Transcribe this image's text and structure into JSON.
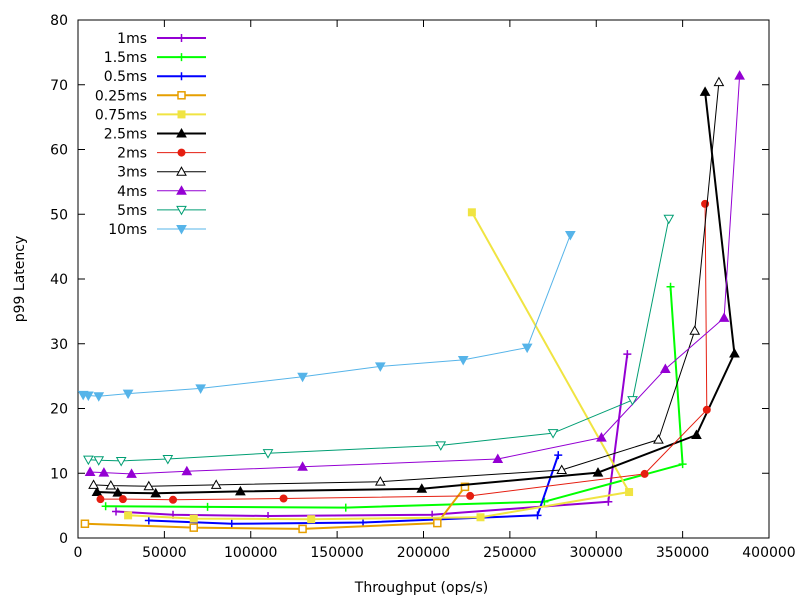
{
  "chart_data": {
    "type": "line",
    "title": "",
    "xlabel": "Throughput (ops/s)",
    "ylabel": "p99 Latency",
    "xlim": [
      0,
      400000
    ],
    "ylim": [
      0,
      80
    ],
    "x_ticks": [
      0,
      50000,
      100000,
      150000,
      200000,
      250000,
      300000,
      350000,
      400000
    ],
    "y_ticks": [
      0,
      10,
      20,
      30,
      40,
      50,
      60,
      70,
      80
    ],
    "grid": false,
    "legend_position": "top-left",
    "series": [
      {
        "name": "1ms",
        "color": "#9400d3",
        "marker": "plus",
        "width": 2,
        "points": [
          [
            22000,
            4.1
          ],
          [
            55000,
            3.6
          ],
          [
            110000,
            3.4
          ],
          [
            205000,
            3.6
          ],
          [
            307000,
            5.6
          ],
          [
            318000,
            28.4
          ]
        ]
      },
      {
        "name": "1.5ms",
        "color": "#00ff00",
        "marker": "plus",
        "width": 2,
        "points": [
          [
            16000,
            4.9
          ],
          [
            75000,
            4.8
          ],
          [
            155000,
            4.7
          ],
          [
            270000,
            5.6
          ],
          [
            350000,
            11.4
          ],
          [
            343000,
            38.8
          ]
        ]
      },
      {
        "name": "0.5ms",
        "color": "#0000ff",
        "marker": "plus",
        "width": 2,
        "points": [
          [
            41000,
            2.7
          ],
          [
            89000,
            2.2
          ],
          [
            165000,
            2.4
          ],
          [
            266000,
            3.5
          ],
          [
            278000,
            12.8
          ]
        ]
      },
      {
        "name": "0.25ms",
        "color": "#e69f00",
        "marker": "square-open",
        "width": 2,
        "points": [
          [
            4000,
            2.2
          ],
          [
            67000,
            1.6
          ],
          [
            130000,
            1.4
          ],
          [
            208000,
            2.3
          ],
          [
            224000,
            7.9
          ]
        ]
      },
      {
        "name": "0.75ms",
        "color": "#f0e442",
        "marker": "square-filled",
        "width": 2,
        "points": [
          [
            29000,
            3.5
          ],
          [
            67000,
            3.0
          ],
          [
            135000,
            2.9
          ],
          [
            233000,
            3.2
          ],
          [
            319000,
            7.1
          ],
          [
            228000,
            50.3
          ]
        ]
      },
      {
        "name": "2.5ms",
        "color": "#000000",
        "marker": "triangle-filled",
        "width": 2,
        "points": [
          [
            11000,
            7.1
          ],
          [
            23000,
            7.0
          ],
          [
            45000,
            6.9
          ],
          [
            94000,
            7.2
          ],
          [
            199000,
            7.6
          ],
          [
            301000,
            10.1
          ],
          [
            358000,
            15.9
          ],
          [
            380000,
            28.5
          ],
          [
            363000,
            68.9
          ]
        ]
      },
      {
        "name": "2ms",
        "color": "#e51e10",
        "marker": "circle-filled",
        "width": 1,
        "points": [
          [
            13000,
            6.0
          ],
          [
            26000,
            6.0
          ],
          [
            55000,
            5.9
          ],
          [
            119000,
            6.1
          ],
          [
            227000,
            6.5
          ],
          [
            328000,
            9.9
          ],
          [
            364000,
            19.8
          ],
          [
            363000,
            51.6
          ]
        ]
      },
      {
        "name": "3ms",
        "color": "#000000",
        "marker": "triangle-open",
        "width": 1,
        "points": [
          [
            9000,
            8.2
          ],
          [
            19000,
            8.1
          ],
          [
            41000,
            8.0
          ],
          [
            80000,
            8.2
          ],
          [
            175000,
            8.7
          ],
          [
            280000,
            10.5
          ],
          [
            336000,
            15.2
          ],
          [
            357000,
            32.0
          ],
          [
            371000,
            70.4
          ]
        ]
      },
      {
        "name": "4ms",
        "color": "#9400d3",
        "marker": "triangle-filled",
        "width": 1,
        "points": [
          [
            7000,
            10.2
          ],
          [
            15000,
            10.1
          ],
          [
            31000,
            9.9
          ],
          [
            63000,
            10.3
          ],
          [
            130000,
            11.0
          ],
          [
            243000,
            12.2
          ],
          [
            303000,
            15.5
          ],
          [
            340000,
            26.1
          ],
          [
            374000,
            34.0
          ],
          [
            383000,
            71.4
          ]
        ]
      },
      {
        "name": "5ms",
        "color": "#009e73",
        "marker": "tri-down-open",
        "width": 1,
        "points": [
          [
            6000,
            12.1
          ],
          [
            12000,
            12.0
          ],
          [
            25000,
            11.9
          ],
          [
            52000,
            12.2
          ],
          [
            110000,
            13.1
          ],
          [
            210000,
            14.3
          ],
          [
            275000,
            16.2
          ],
          [
            321000,
            21.3
          ],
          [
            342000,
            49.3
          ]
        ]
      },
      {
        "name": "10ms",
        "color": "#56b4e9",
        "marker": "tri-down-filled",
        "width": 1,
        "points": [
          [
            3000,
            22.1
          ],
          [
            6000,
            22.0
          ],
          [
            12000,
            21.9
          ],
          [
            29000,
            22.3
          ],
          [
            71000,
            23.1
          ],
          [
            130000,
            24.9
          ],
          [
            175000,
            26.5
          ],
          [
            223000,
            27.5
          ],
          [
            260000,
            29.4
          ],
          [
            285000,
            46.8
          ]
        ]
      }
    ]
  }
}
